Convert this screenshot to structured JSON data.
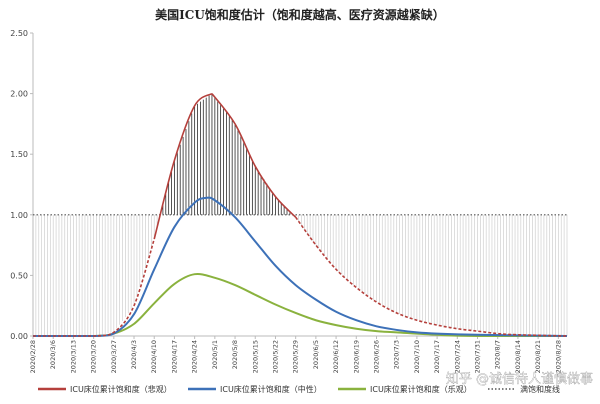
{
  "chart_data": {
    "type": "line",
    "title": "美国ICU饱和度估计（饱和度越高、医疗资源越紧缺）",
    "ylim": [
      0,
      2.5
    ],
    "y_ticks": [
      "0.00",
      "0.50",
      "1.00",
      "1.50",
      "2.00",
      "2.50"
    ],
    "x_tick_labels": [
      "2020/2/28",
      "2020/3/6",
      "2020/3/13",
      "2020/3/20",
      "2020/3/27",
      "2020/4/3",
      "2020/4/10",
      "2020/4/17",
      "2020/4/24",
      "2020/5/1",
      "2020/5/8",
      "2020/5/15",
      "2020/5/22",
      "2020/5/29",
      "2020/6/5",
      "2020/6/12",
      "2020/6/19",
      "2020/6/26",
      "2020/7/3",
      "2020/7/10",
      "2020/7/17",
      "2020/7/24",
      "2020/7/31",
      "2020/8/7",
      "2020/8/14",
      "2020/8/21",
      "2020/8/28"
    ],
    "x_range": [
      "2020/2/28",
      "2020/8/31"
    ],
    "grid": false,
    "legend_position": "bottom",
    "saturation_line": 1.0,
    "series": [
      {
        "name": "ICU床位累计饱和度（悲观）",
        "color": "#b5403c",
        "style": "dashed-then-solid",
        "peak": 2.0,
        "peak_date": "2020/4/30",
        "points": [
          [
            "2020/2/28",
            0
          ],
          [
            "2020/3/20",
            0
          ],
          [
            "2020/3/27",
            0.03
          ],
          [
            "2020/4/3",
            0.25
          ],
          [
            "2020/4/10",
            0.8
          ],
          [
            "2020/4/17",
            1.45
          ],
          [
            "2020/4/24",
            1.9
          ],
          [
            "2020/4/30",
            2.0
          ],
          [
            "2020/5/8",
            1.75
          ],
          [
            "2020/5/15",
            1.4
          ],
          [
            "2020/5/22",
            1.15
          ],
          [
            "2020/5/29",
            0.98
          ],
          [
            "2020/6/5",
            0.75
          ],
          [
            "2020/6/12",
            0.55
          ],
          [
            "2020/6/19",
            0.4
          ],
          [
            "2020/6/26",
            0.28
          ],
          [
            "2020/7/3",
            0.19
          ],
          [
            "2020/7/10",
            0.13
          ],
          [
            "2020/7/17",
            0.09
          ],
          [
            "2020/7/24",
            0.06
          ],
          [
            "2020/7/31",
            0.04
          ],
          [
            "2020/8/7",
            0.02
          ],
          [
            "2020/8/14",
            0.01
          ],
          [
            "2020/8/31",
            0
          ]
        ]
      },
      {
        "name": "ICU床位累计饱和度（中性）",
        "color": "#3d71b8",
        "style": "solid",
        "peak": 1.14,
        "peak_date": "2020/4/28",
        "points": [
          [
            "2020/2/28",
            0
          ],
          [
            "2020/3/20",
            0
          ],
          [
            "2020/3/27",
            0.02
          ],
          [
            "2020/4/3",
            0.18
          ],
          [
            "2020/4/10",
            0.55
          ],
          [
            "2020/4/17",
            0.9
          ],
          [
            "2020/4/24",
            1.1
          ],
          [
            "2020/4/28",
            1.14
          ],
          [
            "2020/5/1",
            1.12
          ],
          [
            "2020/5/8",
            0.98
          ],
          [
            "2020/5/15",
            0.78
          ],
          [
            "2020/5/22",
            0.58
          ],
          [
            "2020/5/29",
            0.42
          ],
          [
            "2020/6/5",
            0.3
          ],
          [
            "2020/6/12",
            0.2
          ],
          [
            "2020/6/19",
            0.13
          ],
          [
            "2020/6/26",
            0.08
          ],
          [
            "2020/7/3",
            0.05
          ],
          [
            "2020/7/10",
            0.03
          ],
          [
            "2020/7/17",
            0.02
          ],
          [
            "2020/7/31",
            0.01
          ],
          [
            "2020/8/31",
            0
          ]
        ]
      },
      {
        "name": "ICU床位累计饱和度（乐观）",
        "color": "#8ab23e",
        "style": "solid",
        "peak": 0.51,
        "peak_date": "2020/4/24",
        "points": [
          [
            "2020/2/28",
            0
          ],
          [
            "2020/3/20",
            0
          ],
          [
            "2020/3/27",
            0.02
          ],
          [
            "2020/4/3",
            0.1
          ],
          [
            "2020/4/10",
            0.27
          ],
          [
            "2020/4/17",
            0.43
          ],
          [
            "2020/4/24",
            0.51
          ],
          [
            "2020/5/1",
            0.48
          ],
          [
            "2020/5/8",
            0.42
          ],
          [
            "2020/5/15",
            0.34
          ],
          [
            "2020/5/22",
            0.26
          ],
          [
            "2020/5/29",
            0.19
          ],
          [
            "2020/6/5",
            0.13
          ],
          [
            "2020/6/12",
            0.09
          ],
          [
            "2020/6/19",
            0.06
          ],
          [
            "2020/6/26",
            0.04
          ],
          [
            "2020/7/3",
            0.03
          ],
          [
            "2020/7/17",
            0.01
          ],
          [
            "2020/7/31",
            0
          ],
          [
            "2020/8/31",
            0
          ]
        ]
      },
      {
        "name": "满饱和度线",
        "color": "#555555",
        "style": "dotted",
        "value": 1.0
      }
    ]
  },
  "watermark": "知乎 @诚信待人谨慎做事"
}
